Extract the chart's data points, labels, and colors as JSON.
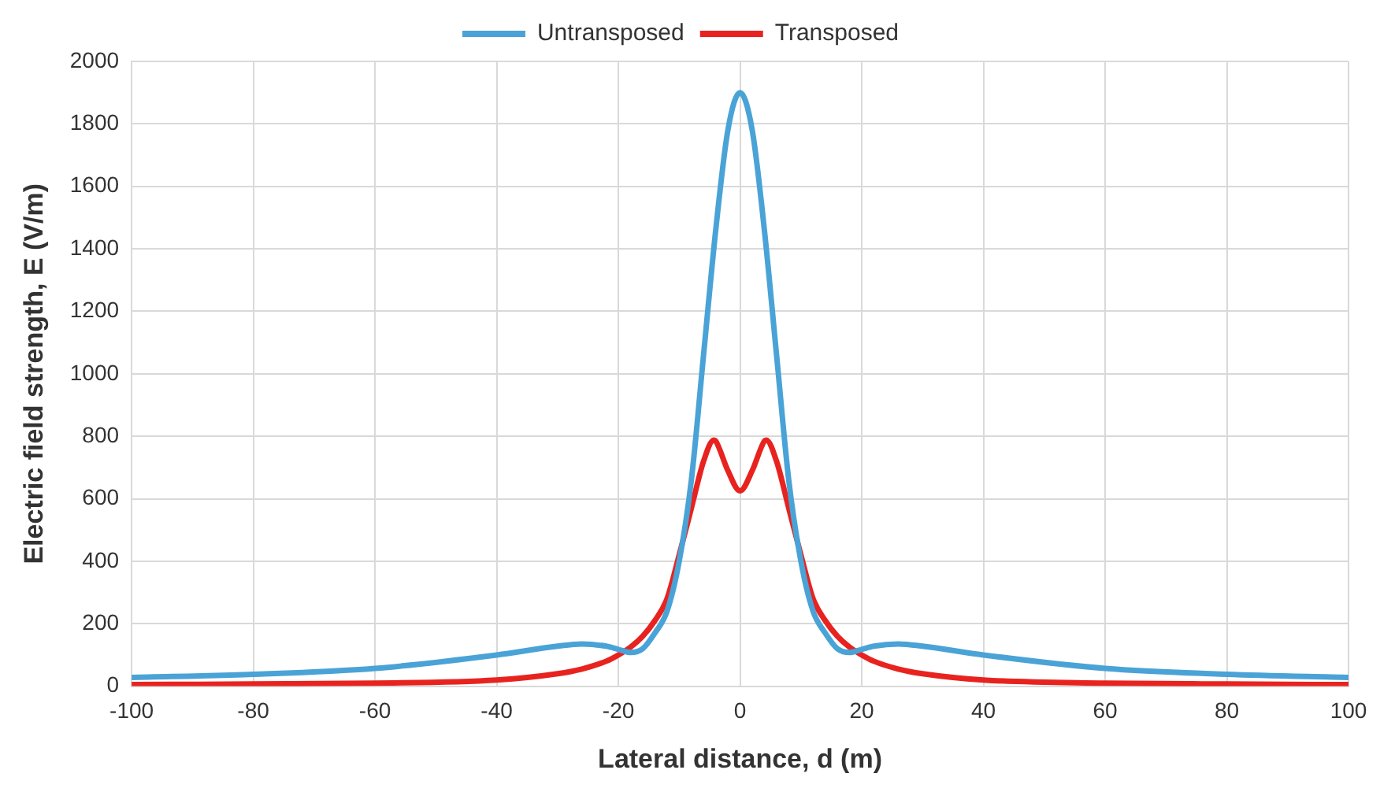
{
  "chart_data": {
    "type": "line",
    "xlabel": "Lateral distance, d (m)",
    "ylabel": "Electric field strength, E (V/m)",
    "xlim": [
      -100,
      100
    ],
    "xticks": [
      -100,
      -80,
      -60,
      -40,
      -20,
      0,
      20,
      40,
      60,
      80,
      100
    ],
    "ylim": [
      0,
      2000
    ],
    "yticks": [
      0,
      200,
      400,
      600,
      800,
      1000,
      1200,
      1400,
      1600,
      1800,
      2000
    ],
    "grid": true,
    "legend": "top",
    "marker": "none",
    "line_style": "solid",
    "x": [
      -100,
      -80,
      -60,
      -40,
      -30,
      -26,
      -22,
      -20,
      -18,
      -16,
      -14,
      -12,
      -10,
      -8,
      -6,
      -4.3,
      -4,
      -2,
      0,
      2,
      4,
      4.3,
      6,
      8,
      10,
      12,
      14,
      16,
      18,
      20,
      22,
      26,
      30,
      40,
      60,
      80,
      100
    ],
    "series": [
      {
        "name": "Untransposed",
        "color": "#4aa3d6",
        "values": [
          28,
          38,
          57,
          100,
          128,
          135,
          128,
          118,
          108,
          120,
          170,
          240,
          400,
          660,
          1060,
          null,
          1460,
          1780,
          1900,
          1780,
          1460,
          null,
          1060,
          660,
          400,
          240,
          170,
          120,
          108,
          118,
          128,
          135,
          128,
          100,
          57,
          38,
          28
        ]
      },
      {
        "name": "Transposed",
        "color": "#e8231f",
        "values": [
          5,
          7,
          10,
          20,
          40,
          55,
          80,
          100,
          125,
          160,
          210,
          280,
          420,
          570,
          720,
          788,
          785,
          690,
          625,
          690,
          785,
          788,
          720,
          570,
          420,
          280,
          210,
          160,
          125,
          100,
          80,
          55,
          40,
          20,
          10,
          7,
          5
        ]
      }
    ]
  }
}
